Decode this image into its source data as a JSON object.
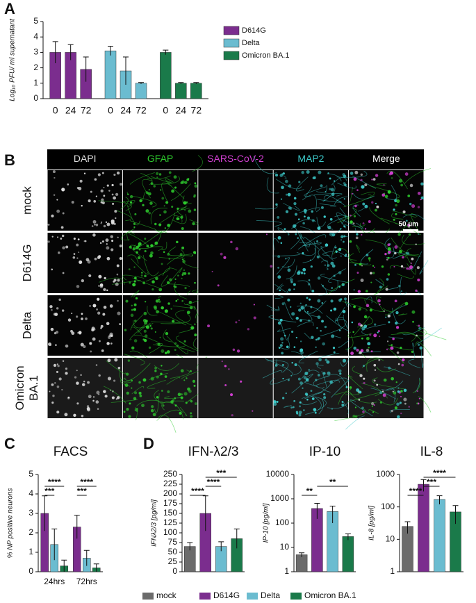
{
  "panel_labels": [
    "A",
    "B",
    "C",
    "D"
  ],
  "chart_data": [
    {
      "type": "bar",
      "y_label": "Log₁₀ PFU/ ml supernatant",
      "categories": [
        "0",
        "24",
        "72"
      ],
      "series": [
        {
          "name": "D614G",
          "color": "#7b2d8e",
          "values": [
            3.0,
            3.0,
            1.9
          ],
          "errors": [
            0.7,
            0.5,
            0.8
          ]
        },
        {
          "name": "Delta",
          "color": "#6bbcd0",
          "values": [
            3.1,
            1.8,
            1.0
          ],
          "errors": [
            0.3,
            0.9,
            0.05
          ]
        },
        {
          "name": "Omicron BA.1",
          "color": "#1a7a4a",
          "values": [
            3.0,
            1.0,
            1.0
          ],
          "errors": [
            0.15,
            0.05,
            0.05
          ]
        }
      ],
      "ylim": [
        0,
        5
      ],
      "yticks": [
        0,
        1,
        2,
        3,
        4,
        5
      ],
      "legend": "right"
    },
    {
      "type": "bar",
      "title": "FACS",
      "y_label": "% NP positive neurons",
      "categories": [
        "24hrs",
        "72hrs"
      ],
      "series": [
        {
          "color": "#7b2d8e",
          "values": [
            3.0,
            2.3
          ],
          "errors": [
            0.9,
            0.6
          ]
        },
        {
          "color": "#6bbcd0",
          "values": [
            1.4,
            0.7
          ],
          "errors": [
            0.8,
            0.4
          ]
        },
        {
          "color": "#1a7a4a",
          "values": [
            0.3,
            0.2
          ],
          "errors": [
            0.3,
            0.2
          ]
        }
      ],
      "ylim": [
        0,
        5
      ],
      "yticks": [
        0,
        1,
        2,
        3,
        4,
        5
      ],
      "significance": [
        {
          "label": "***",
          "group": 0,
          "pair": [
            0,
            1
          ]
        },
        {
          "label": "****",
          "group": 0,
          "pair": [
            0,
            2
          ]
        },
        {
          "label": "***",
          "group": 1,
          "pair": [
            0,
            1
          ]
        },
        {
          "label": "****",
          "group": 1,
          "pair": [
            0,
            2
          ]
        }
      ]
    },
    {
      "type": "bar",
      "title": "IFN-λ2/3",
      "y_label": "IFNλ2/3 [pg/ml]",
      "values": [
        65,
        150,
        65,
        85
      ],
      "errors": [
        10,
        45,
        12,
        25
      ],
      "colors": [
        "#6b6b6b",
        "#7b2d8e",
        "#6bbcd0",
        "#1a7a4a"
      ],
      "ylim": [
        0,
        250
      ],
      "yticks": [
        0,
        25,
        50,
        75,
        100,
        125,
        150,
        175,
        200,
        225,
        250
      ],
      "significance": [
        {
          "label": "****",
          "pair": [
            0,
            1
          ]
        },
        {
          "label": "****",
          "pair": [
            1,
            2
          ]
        },
        {
          "label": "***",
          "pair": [
            1,
            3
          ]
        }
      ]
    },
    {
      "type": "bar",
      "title": "IP-10",
      "y_label": "IP-10 [pg/ml]",
      "log_scale": true,
      "values": [
        5,
        400,
        300,
        28
      ],
      "errors": [
        1,
        250,
        200,
        8
      ],
      "colors": [
        "#6b6b6b",
        "#7b2d8e",
        "#6bbcd0",
        "#1a7a4a"
      ],
      "ylim": [
        1,
        10000
      ],
      "yticks": [
        1,
        10,
        100,
        1000,
        10000
      ],
      "significance": [
        {
          "label": "**",
          "pair": [
            0,
            1
          ]
        },
        {
          "label": "**",
          "pair": [
            1,
            3
          ]
        }
      ]
    },
    {
      "type": "bar",
      "title": "IL-8",
      "y_label": "IL-8 [pg/ml]",
      "log_scale": true,
      "values": [
        25,
        500,
        170,
        70
      ],
      "errors": [
        10,
        200,
        50,
        40
      ],
      "colors": [
        "#6b6b6b",
        "#7b2d8e",
        "#6bbcd0",
        "#1a7a4a"
      ],
      "ylim": [
        1,
        1000
      ],
      "yticks": [
        1,
        10,
        100,
        1000
      ],
      "significance": [
        {
          "label": "****",
          "pair": [
            0,
            1
          ]
        },
        {
          "label": "***",
          "pair": [
            1,
            2
          ]
        },
        {
          "label": "****",
          "pair": [
            1,
            3
          ]
        }
      ]
    }
  ],
  "figure_legend": [
    {
      "name": "mock",
      "color": "#6b6b6b"
    },
    {
      "name": "D614G",
      "color": "#7b2d8e"
    },
    {
      "name": "Delta",
      "color": "#6bbcd0"
    },
    {
      "name": "Omicron BA.1",
      "color": "#1a7a4a"
    }
  ],
  "image_grid": {
    "columns": [
      "DAPI",
      "GFAP",
      "SARS-CoV-2",
      "MAP2",
      "Merge"
    ],
    "column_colors": [
      "#dddddd",
      "#2ecc2e",
      "#d23fd2",
      "#3cc8c8",
      "#ffffff"
    ],
    "rows": [
      "mock",
      "D614G",
      "Delta",
      "Omicron BA.1"
    ],
    "scale_bar": "50 µm"
  }
}
